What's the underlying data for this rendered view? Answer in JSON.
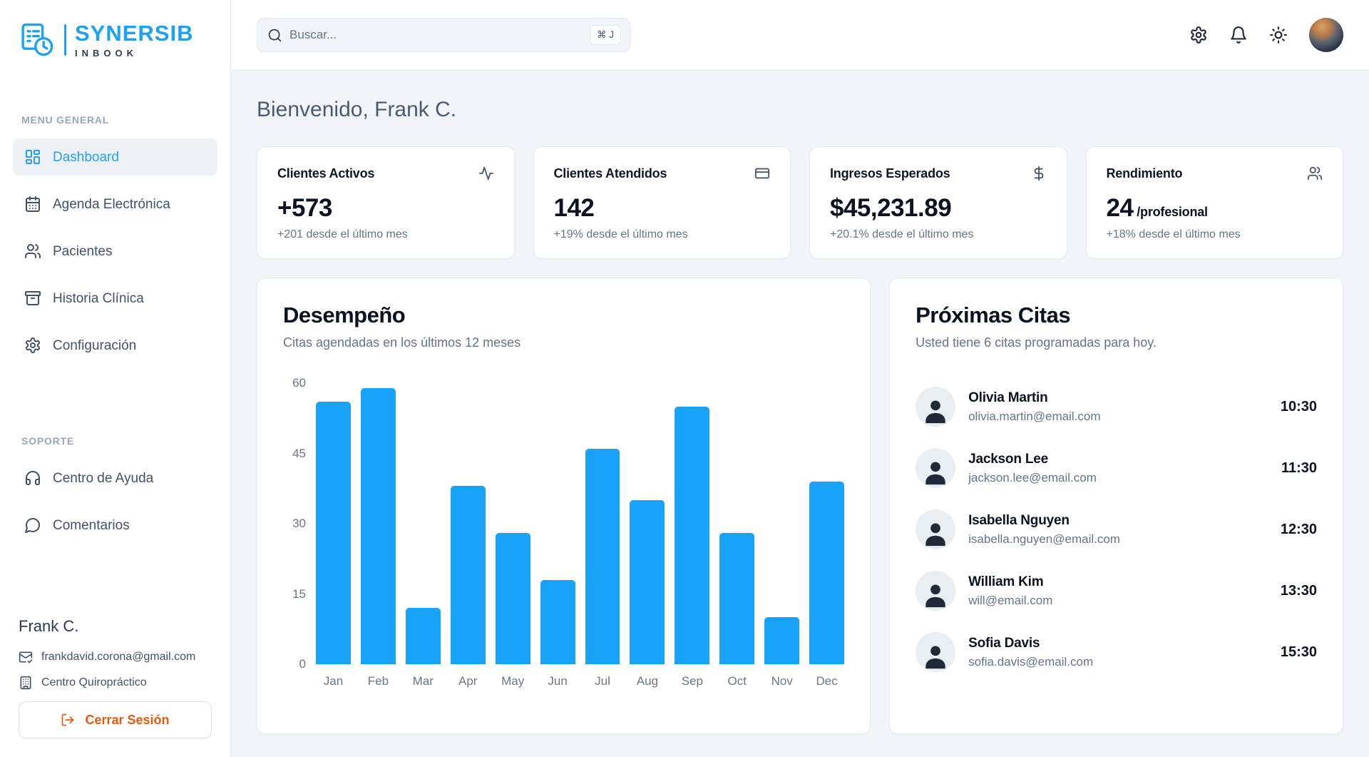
{
  "app": {
    "name": "SYNERSIB",
    "subname": "INBOOK"
  },
  "colors": {
    "accent": "#18a3f8",
    "logo_blue": "#1da1f2",
    "logout_orange": "#e8590f",
    "active_nav": "#2a9ff5"
  },
  "header": {
    "search_placeholder": "Buscar...",
    "search_shortcut": "⌘ J",
    "icons": [
      "settings",
      "bell",
      "sun"
    ]
  },
  "sidebar": {
    "section_general": "MENU GENERAL",
    "items": [
      {
        "label": "Dashboard",
        "icon": "layout-dashboard",
        "active": true
      },
      {
        "label": "Agenda Electrónica",
        "icon": "calendar-days",
        "active": false
      },
      {
        "label": "Pacientes",
        "icon": "users",
        "active": false
      },
      {
        "label": "Historia Clínica",
        "icon": "archive",
        "active": false
      },
      {
        "label": "Configuración",
        "icon": "settings",
        "active": false
      }
    ],
    "section_support": "SOPORTE",
    "support_items": [
      {
        "label": "Centro de Ayuda",
        "icon": "headphones",
        "active": false
      },
      {
        "label": "Comentarios",
        "icon": "message-circle",
        "active": false
      }
    ],
    "user": {
      "name": "Frank C.",
      "email": "frankdavid.corona@gmail.com",
      "email_icon": "mail-check",
      "org": "Centro Quiropráctico",
      "org_icon": "building",
      "logout_label": "Cerrar Sesión",
      "logout_icon": "log-out"
    }
  },
  "main": {
    "welcome": "Bienvenido, Frank C.",
    "stats": [
      {
        "title": "Clientes Activos",
        "icon": "activity",
        "value": "+573",
        "sub": "+201 desde el último mes"
      },
      {
        "title": "Clientes Atendidos",
        "icon": "credit-card",
        "value": "142",
        "sub": "+19% desde el último mes"
      },
      {
        "title": "Ingresos Esperados",
        "icon": "dollar-sign",
        "value": "$45,231.89",
        "sub": "+20.1% desde el último mes"
      },
      {
        "title": "Rendimiento",
        "icon": "users",
        "value": "24",
        "value_suffix": " /profesional",
        "sub": "+18% desde el último mes"
      }
    ],
    "appointments": {
      "title": "Próximas Citas",
      "subtitle": "Usted tiene 6 citas programadas para hoy.",
      "items": [
        {
          "name": "Olivia Martin",
          "email": "olivia.martin@email.com",
          "time": "10:30"
        },
        {
          "name": "Jackson Lee",
          "email": "jackson.lee@email.com",
          "time": "11:30"
        },
        {
          "name": "Isabella Nguyen",
          "email": "isabella.nguyen@email.com",
          "time": "12:30"
        },
        {
          "name": "William Kim",
          "email": "will@email.com",
          "time": "13:30"
        },
        {
          "name": "Sofia Davis",
          "email": "sofia.davis@email.com",
          "time": "15:30"
        }
      ]
    }
  },
  "chart_data": {
    "type": "bar",
    "title": "Desempeño",
    "subtitle": "Citas agendadas en los últimos 12 meses",
    "categories": [
      "Jan",
      "Feb",
      "Mar",
      "Apr",
      "May",
      "Jun",
      "Jul",
      "Aug",
      "Sep",
      "Oct",
      "Nov",
      "Dec"
    ],
    "values": [
      56,
      59,
      12,
      38,
      28,
      18,
      46,
      35,
      55,
      28,
      10,
      39
    ],
    "xlabel": "",
    "ylabel": "",
    "ylim": [
      0,
      60
    ],
    "yticks": [
      0,
      15,
      30,
      45,
      60
    ],
    "bar_color": "#18a3f8",
    "grid": false,
    "legend": false
  }
}
